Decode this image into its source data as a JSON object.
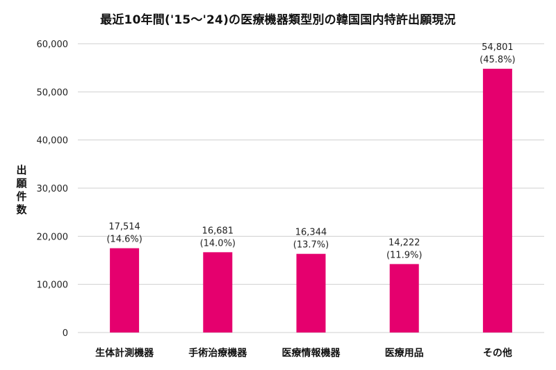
{
  "chart_data": {
    "type": "bar",
    "title": "最近10年間('15～'24)の医療機器類型別の韓国国内特許出願現況",
    "xlabel": "",
    "ylabel": "出願件数",
    "ylim": [
      0,
      60000
    ],
    "yticks": [
      "0",
      "10,000",
      "20,000",
      "30,000",
      "40,000",
      "50,000",
      "60,000"
    ],
    "grid": true,
    "categories": [
      "生体計測機器",
      "手術治療機器",
      "医療情報機器",
      "医療用品",
      "その他"
    ],
    "values": [
      17514,
      16681,
      16344,
      14222,
      54801
    ],
    "value_labels": [
      "17,514",
      "16,681",
      "16,344",
      "14,222",
      "54,801"
    ],
    "share_labels": [
      "(14.6%)",
      "(14.0%)",
      "(13.7%)",
      "(11.9%)",
      "(45.8%)"
    ],
    "bar_color": "#E5006E"
  }
}
